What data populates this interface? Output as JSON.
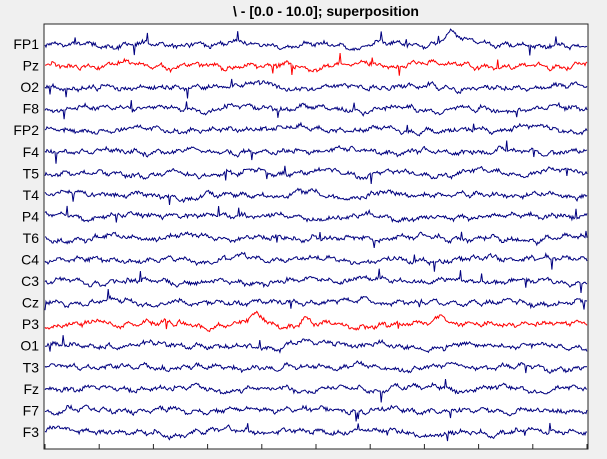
{
  "chart_data": {
    "type": "line",
    "title": "\\ - [0.0 - 10.0]; superposition",
    "xlabel": "",
    "ylabel": "",
    "xlim": [
      0,
      10
    ],
    "grid": false,
    "legend": "none",
    "channels": [
      "FP1",
      "Pz",
      "O2",
      "F8",
      "FP2",
      "F4",
      "T5",
      "T4",
      "P4",
      "T6",
      "C4",
      "C3",
      "Cz",
      "P3",
      "O1",
      "T3",
      "Fz",
      "F7",
      "F3"
    ],
    "highlighted_channels": [
      "Pz",
      "P3"
    ],
    "colors": {
      "default": "#00007f",
      "highlight": "#ff0000",
      "axes_bg": "#ffffff",
      "figure_bg": "#f0f0f0"
    },
    "series": [
      {
        "name": "FP1",
        "values": []
      },
      {
        "name": "Pz",
        "values": []
      },
      {
        "name": "O2",
        "values": []
      },
      {
        "name": "F8",
        "values": []
      },
      {
        "name": "FP2",
        "values": []
      },
      {
        "name": "F4",
        "values": []
      },
      {
        "name": "T5",
        "values": []
      },
      {
        "name": "T4",
        "values": []
      },
      {
        "name": "P4",
        "values": []
      },
      {
        "name": "T6",
        "values": []
      },
      {
        "name": "C4",
        "values": []
      },
      {
        "name": "C3",
        "values": []
      },
      {
        "name": "Cz",
        "values": []
      },
      {
        "name": "P3",
        "values": []
      },
      {
        "name": "O1",
        "values": []
      },
      {
        "name": "T3",
        "values": []
      },
      {
        "name": "Fz",
        "values": []
      },
      {
        "name": "F7",
        "values": []
      },
      {
        "name": "F3",
        "values": []
      }
    ]
  }
}
